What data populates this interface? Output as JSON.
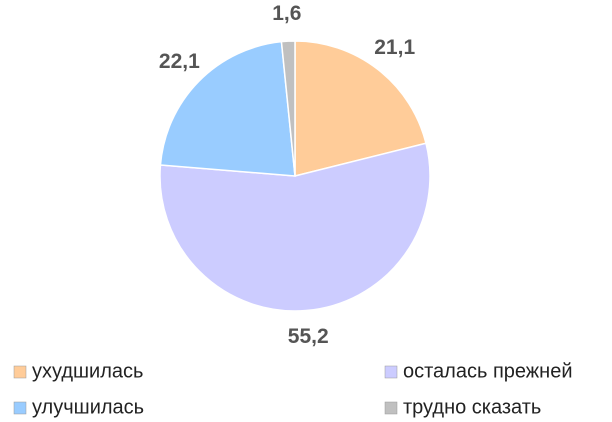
{
  "chart_data": {
    "type": "pie",
    "categories": [
      "ухудшилась",
      "осталась прежней",
      "улучшилась",
      "трудно сказать"
    ],
    "values": [
      21.1,
      55.2,
      22.1,
      1.6
    ],
    "value_labels": [
      "21,1",
      "55,2",
      "22,1",
      "1,6"
    ],
    "colors": [
      "#ffcc99",
      "#ccccff",
      "#99ccff",
      "#c0c0c0"
    ],
    "legend": "bottom"
  }
}
